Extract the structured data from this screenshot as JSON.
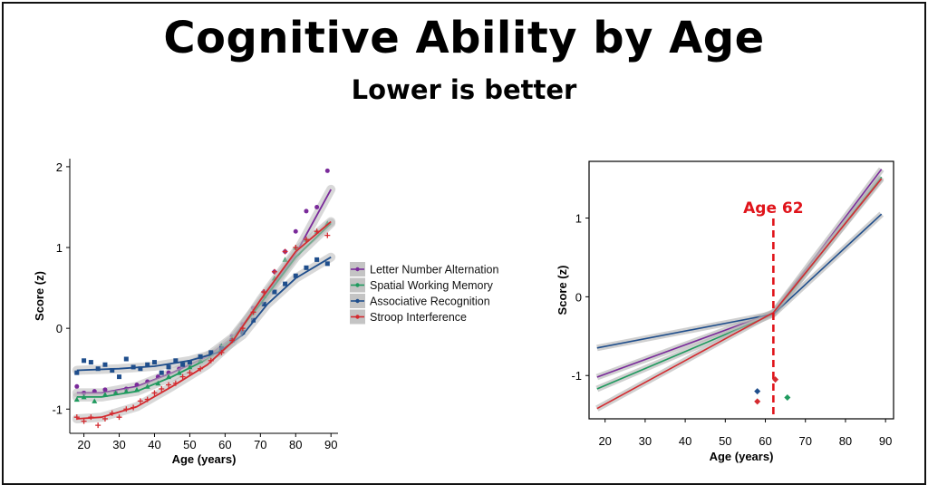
{
  "title": "Cognitive Ability by Age",
  "subtitle": "Lower is better",
  "chart_data": [
    {
      "type": "scatter",
      "xlabel": "Age (years)",
      "ylabel": "Score (z)",
      "xlim": [
        16,
        92
      ],
      "ylim": [
        -1.3,
        2.1
      ],
      "xticks": [
        "20",
        "30",
        "40",
        "50",
        "60",
        "70",
        "80",
        "90"
      ],
      "yticks": [
        "-1",
        "0",
        "1",
        "2"
      ],
      "legend_position": "right",
      "series": [
        {
          "name": "Letter Number Alternation",
          "color": "#7a2a9a",
          "marker": "circle",
          "x": [
            18,
            20,
            23,
            26,
            29,
            32,
            35,
            38,
            41,
            44,
            47,
            50,
            53,
            56,
            59,
            62,
            65,
            68,
            71,
            74,
            77,
            80,
            83,
            86,
            89
          ],
          "values": [
            -0.72,
            -0.8,
            -0.78,
            -0.76,
            -0.8,
            -0.75,
            -0.7,
            -0.66,
            -0.6,
            -0.55,
            -0.5,
            -0.45,
            -0.38,
            -0.3,
            -0.22,
            -0.1,
            0.05,
            0.25,
            0.45,
            0.7,
            0.95,
            1.2,
            1.45,
            1.5,
            1.95
          ],
          "fit": [
            [
              18,
              -0.8
            ],
            [
              25,
              -0.8
            ],
            [
              35,
              -0.72
            ],
            [
              45,
              -0.55
            ],
            [
              55,
              -0.35
            ],
            [
              62,
              -0.12
            ],
            [
              70,
              0.32
            ],
            [
              80,
              0.92
            ],
            [
              90,
              1.72
            ]
          ]
        },
        {
          "name": "Spatial Working Memory",
          "color": "#1f9a5e",
          "marker": "triangle",
          "x": [
            18,
            20,
            23,
            26,
            29,
            32,
            35,
            38,
            41,
            44,
            47,
            50,
            53,
            56,
            59,
            62,
            65,
            68,
            71,
            74,
            77,
            80,
            83,
            86,
            89
          ],
          "values": [
            -0.88,
            -0.85,
            -0.9,
            -0.82,
            -0.8,
            -0.78,
            -0.76,
            -0.72,
            -0.68,
            -0.6,
            -0.55,
            -0.48,
            -0.4,
            -0.32,
            -0.22,
            -0.12,
            0.0,
            0.2,
            0.4,
            0.62,
            0.85,
            1.0,
            1.1,
            1.2,
            1.3
          ],
          "fit": [
            [
              18,
              -0.85
            ],
            [
              25,
              -0.85
            ],
            [
              35,
              -0.78
            ],
            [
              45,
              -0.6
            ],
            [
              55,
              -0.38
            ],
            [
              62,
              -0.14
            ],
            [
              70,
              0.3
            ],
            [
              80,
              0.88
            ],
            [
              90,
              1.3
            ]
          ]
        },
        {
          "name": "Associative Recognition",
          "color": "#1f4e8c",
          "marker": "square",
          "x": [
            18,
            20,
            22,
            24,
            26,
            28,
            30,
            32,
            34,
            36,
            38,
            40,
            42,
            44,
            46,
            48,
            50,
            53,
            56,
            59,
            62,
            65,
            68,
            71,
            74,
            77,
            80,
            83,
            86,
            89
          ],
          "values": [
            -0.55,
            -0.4,
            -0.42,
            -0.5,
            -0.45,
            -0.52,
            -0.6,
            -0.38,
            -0.48,
            -0.5,
            -0.45,
            -0.42,
            -0.55,
            -0.48,
            -0.4,
            -0.45,
            -0.42,
            -0.35,
            -0.3,
            -0.25,
            -0.15,
            -0.05,
            0.1,
            0.3,
            0.45,
            0.55,
            0.65,
            0.75,
            0.85,
            0.8
          ],
          "fit": [
            [
              18,
              -0.52
            ],
            [
              30,
              -0.5
            ],
            [
              40,
              -0.47
            ],
            [
              50,
              -0.4
            ],
            [
              58,
              -0.3
            ],
            [
              65,
              -0.08
            ],
            [
              72,
              0.3
            ],
            [
              80,
              0.62
            ],
            [
              90,
              0.88
            ]
          ]
        },
        {
          "name": "Stroop Interference",
          "color": "#d42a2f",
          "marker": "plus",
          "x": [
            18,
            20,
            22,
            24,
            26,
            28,
            30,
            32,
            34,
            36,
            38,
            40,
            42,
            44,
            46,
            48,
            50,
            53,
            56,
            59,
            62,
            65,
            68,
            71,
            74,
            77,
            80,
            83,
            86,
            89
          ],
          "values": [
            -1.1,
            -1.15,
            -1.1,
            -1.2,
            -1.12,
            -1.05,
            -1.1,
            -1.0,
            -0.98,
            -0.9,
            -0.88,
            -0.8,
            -0.75,
            -0.7,
            -0.68,
            -0.6,
            -0.55,
            -0.5,
            -0.4,
            -0.3,
            -0.15,
            0.0,
            0.2,
            0.45,
            0.7,
            0.95,
            1.0,
            1.1,
            1.2,
            1.15
          ],
          "fit": [
            [
              18,
              -1.12
            ],
            [
              25,
              -1.1
            ],
            [
              35,
              -0.97
            ],
            [
              45,
              -0.72
            ],
            [
              55,
              -0.45
            ],
            [
              62,
              -0.17
            ],
            [
              70,
              0.35
            ],
            [
              80,
              0.95
            ],
            [
              90,
              1.32
            ]
          ]
        }
      ]
    },
    {
      "type": "line",
      "xlabel": "Age (years)",
      "ylabel": "Score (z)",
      "xlim": [
        16,
        92
      ],
      "ylim": [
        -1.55,
        1.72
      ],
      "xticks": [
        "20",
        "30",
        "40",
        "50",
        "60",
        "70",
        "80",
        "90"
      ],
      "yticks": [
        "-1",
        "0",
        "1"
      ],
      "annotation": "Age 62",
      "breakpoint_age": 62,
      "annotation_color": "#e0141b",
      "series": [
        {
          "color": "#7a2a9a",
          "values": [
            [
              18,
              -1.02
            ],
            [
              62,
              -0.2
            ],
            [
              89,
              1.62
            ]
          ]
        },
        {
          "color": "#1f9a5e",
          "values": [
            [
              18,
              -1.17
            ],
            [
              62,
              -0.22
            ],
            [
              89,
              1.52
            ]
          ]
        },
        {
          "color": "#1f4e8c",
          "values": [
            [
              18,
              -0.65
            ],
            [
              62,
              -0.22
            ],
            [
              89,
              1.05
            ]
          ]
        },
        {
          "color": "#d42a2f",
          "values": [
            [
              18,
              -1.42
            ],
            [
              62,
              -0.2
            ],
            [
              89,
              1.5
            ]
          ]
        }
      ],
      "breakpoint_markers": [
        {
          "color": "#1f4e8c",
          "x": 58,
          "y": -1.2
        },
        {
          "color": "#d42a2f",
          "x": 58,
          "y": -1.33
        },
        {
          "color": "#d42a2f",
          "x": 62.5,
          "y": -1.05
        },
        {
          "color": "#1f9a5e",
          "x": 65.5,
          "y": -1.28
        }
      ]
    }
  ]
}
